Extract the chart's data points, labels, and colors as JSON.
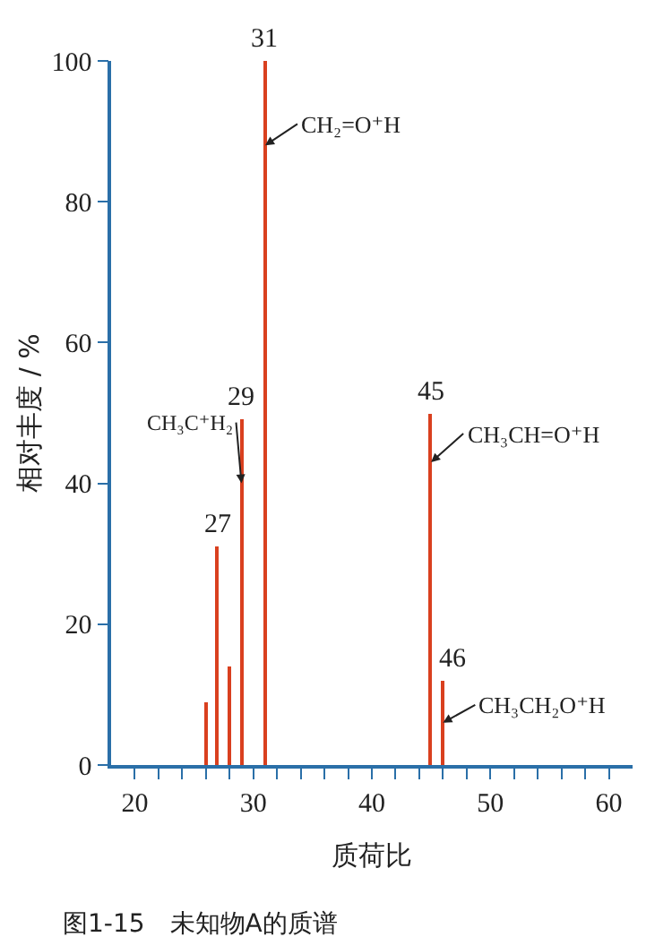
{
  "chart_data": {
    "type": "bar",
    "xlabel": "质荷比",
    "ylabel": "相对丰度 / %",
    "x": [
      26,
      27,
      28,
      29,
      31,
      45,
      46
    ],
    "values": [
      9,
      31,
      14,
      49,
      100,
      50,
      12
    ],
    "color": "#d9401f",
    "xlim": [
      18,
      62
    ],
    "xticks": [
      20,
      {
        "value": 22,
        "label": null
      },
      {
        "value": 24,
        "label": null
      },
      {
        "value": 26,
        "label": null
      },
      {
        "value": 28,
        "label": null
      },
      30,
      {
        "value": 32,
        "label": null
      },
      {
        "value": 34,
        "label": null
      },
      {
        "value": 36,
        "label": null
      },
      {
        "value": 38,
        "label": null
      },
      40,
      {
        "value": 42,
        "label": null
      },
      {
        "value": 44,
        "label": null
      },
      {
        "value": 46,
        "label": null
      },
      {
        "value": 48,
        "label": null
      },
      50,
      {
        "value": 52,
        "label": null
      },
      {
        "value": 54,
        "label": null
      },
      {
        "value": 56,
        "label": null
      },
      {
        "value": 58,
        "label": null
      },
      60
    ],
    "ylim": [
      0,
      100
    ],
    "yticks": [
      0,
      20,
      40,
      60,
      80,
      100
    ],
    "grid": false,
    "annotations": [
      {
        "text": "27",
        "x": 27,
        "y": 31
      },
      {
        "text": "29",
        "x": 29,
        "y": 49
      },
      {
        "text": "31",
        "x": 31,
        "y": 100
      },
      {
        "text": "45",
        "x": 45,
        "y": 50
      },
      {
        "text": "46",
        "x": 46,
        "y": 12
      },
      {
        "text": "CH₂=O⁺H",
        "x": 31,
        "y": 88
      },
      {
        "text": "CH₃C⁺H₂",
        "x": 29,
        "y": 40
      },
      {
        "text": "CH₃CH=O⁺H",
        "x": 45,
        "y": 43
      },
      {
        "text": "CH₃CH₂O⁺H",
        "x": 46,
        "y": 6
      },
      "图1-15　未知物A的质谱"
    ]
  }
}
